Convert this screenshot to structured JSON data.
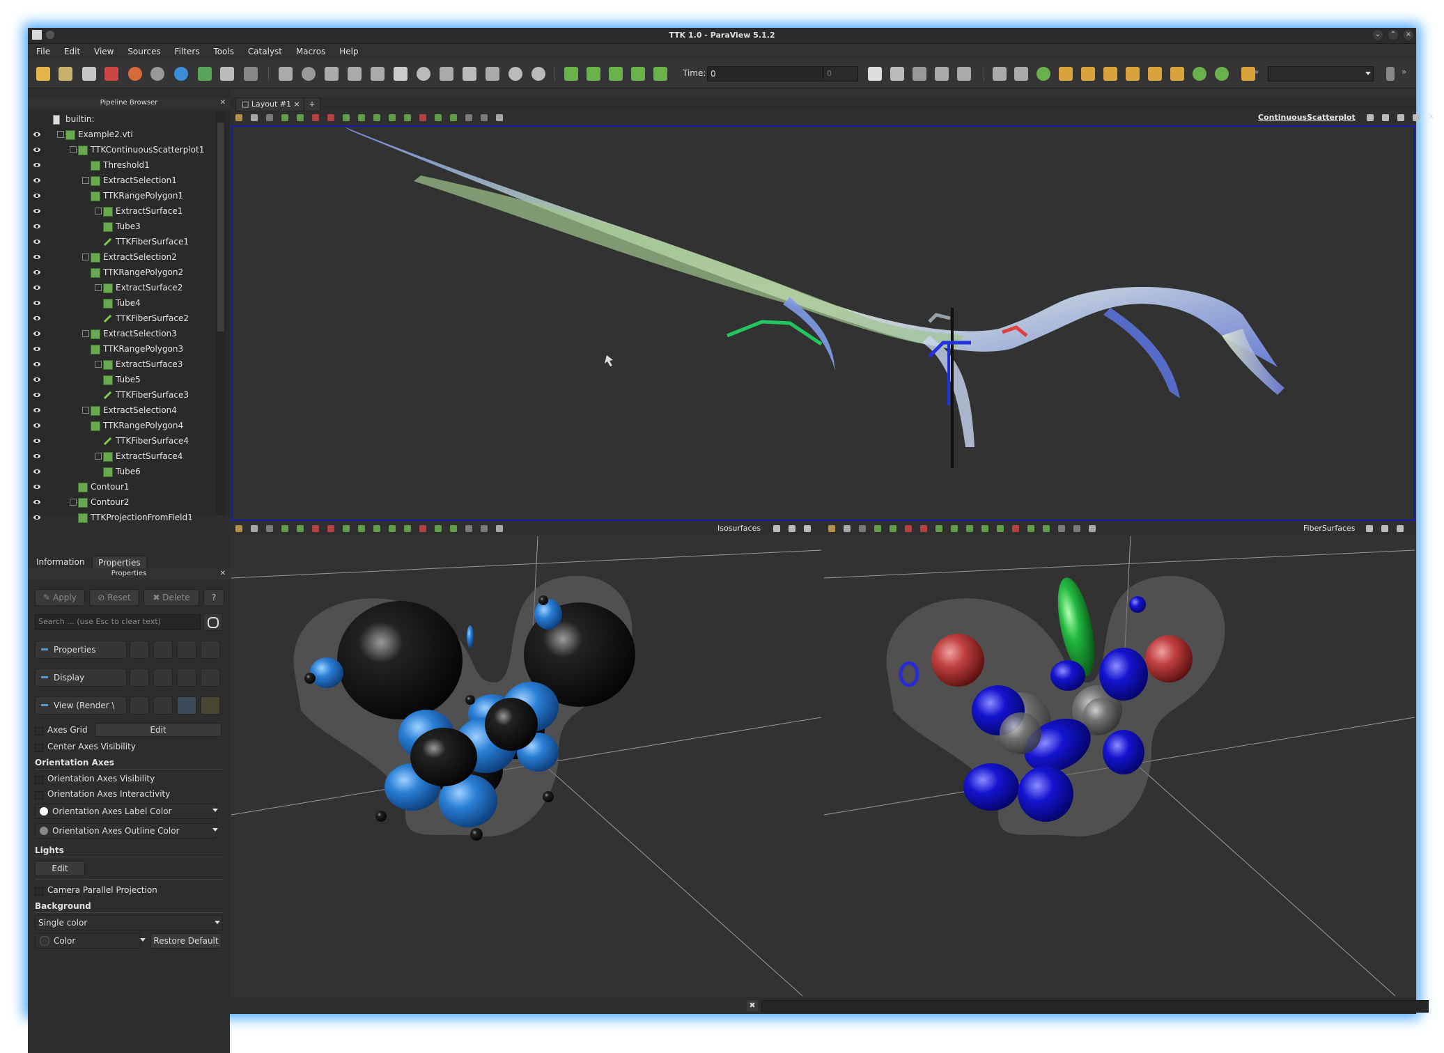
{
  "window": {
    "title": "TTK 1.0 - ParaView 5.1.2"
  },
  "menu": [
    "File",
    "Edit",
    "View",
    "Sources",
    "Filters",
    "Tools",
    "Catalyst",
    "Macros",
    "Help"
  ],
  "time": {
    "label": "Time:",
    "value": "0",
    "spin": "0"
  },
  "pipeline": {
    "title": "Pipeline Browser",
    "items": [
      {
        "label": "builtin:",
        "indent": 0,
        "eye": false,
        "icon": "server",
        "expander": false
      },
      {
        "label": "Example2.vti",
        "indent": 1,
        "eye": true,
        "icon": "cube",
        "expander": true
      },
      {
        "label": "TTKContinuousScatterplot1",
        "indent": 2,
        "eye": true,
        "icon": "cube",
        "expander": true
      },
      {
        "label": "Threshold1",
        "indent": 3,
        "eye": true,
        "icon": "cube",
        "expander": false
      },
      {
        "label": "ExtractSelection1",
        "indent": 3,
        "eye": true,
        "icon": "cube",
        "expander": true
      },
      {
        "label": "TTKRangePolygon1",
        "indent": 3,
        "eye": true,
        "icon": "cube",
        "expander": false
      },
      {
        "label": "ExtractSurface1",
        "indent": 4,
        "eye": true,
        "icon": "cube",
        "expander": true
      },
      {
        "label": "Tube3",
        "indent": 4,
        "eye": true,
        "icon": "cube",
        "expander": false
      },
      {
        "label": "TTKFiberSurface1",
        "indent": 4,
        "eye": true,
        "icon": "pencil",
        "expander": false
      },
      {
        "label": "ExtractSelection2",
        "indent": 3,
        "eye": true,
        "icon": "cube",
        "expander": true
      },
      {
        "label": "TTKRangePolygon2",
        "indent": 3,
        "eye": true,
        "icon": "cube",
        "expander": false
      },
      {
        "label": "ExtractSurface2",
        "indent": 4,
        "eye": true,
        "icon": "cube",
        "expander": true
      },
      {
        "label": "Tube4",
        "indent": 4,
        "eye": true,
        "icon": "cube",
        "expander": false
      },
      {
        "label": "TTKFiberSurface2",
        "indent": 4,
        "eye": true,
        "icon": "pencil",
        "expander": false
      },
      {
        "label": "ExtractSelection3",
        "indent": 3,
        "eye": true,
        "icon": "cube",
        "expander": true
      },
      {
        "label": "TTKRangePolygon3",
        "indent": 3,
        "eye": true,
        "icon": "cube",
        "expander": false
      },
      {
        "label": "ExtractSurface3",
        "indent": 4,
        "eye": true,
        "icon": "cube",
        "expander": true
      },
      {
        "label": "Tube5",
        "indent": 4,
        "eye": true,
        "icon": "cube",
        "expander": false
      },
      {
        "label": "TTKFiberSurface3",
        "indent": 4,
        "eye": true,
        "icon": "pencil",
        "expander": false
      },
      {
        "label": "ExtractSelection4",
        "indent": 3,
        "eye": true,
        "icon": "cube",
        "expander": true
      },
      {
        "label": "TTKRangePolygon4",
        "indent": 3,
        "eye": true,
        "icon": "cube",
        "expander": false
      },
      {
        "label": "TTKFiberSurface4",
        "indent": 4,
        "eye": true,
        "icon": "pencil",
        "expander": false
      },
      {
        "label": "ExtractSurface4",
        "indent": 4,
        "eye": true,
        "icon": "cube",
        "expander": true
      },
      {
        "label": "Tube6",
        "indent": 4,
        "eye": true,
        "icon": "cube",
        "expander": false
      },
      {
        "label": "Contour1",
        "indent": 2,
        "eye": true,
        "icon": "cube",
        "expander": false
      },
      {
        "label": "Contour2",
        "indent": 2,
        "eye": true,
        "icon": "cube",
        "expander": true
      },
      {
        "label": "TTKProjectionFromField1",
        "indent": 2,
        "eye": true,
        "icon": "cube",
        "expander": false
      }
    ]
  },
  "tabs": {
    "information": "Information",
    "properties": "Properties"
  },
  "properties": {
    "title": "Properties",
    "apply": "Apply",
    "reset": "Reset",
    "delete": "Delete",
    "help": "?",
    "search_placeholder": "Search ... (use Esc to clear text)",
    "sections": {
      "properties": "Properties",
      "display": "Display",
      "view": "View (Render \\"
    },
    "axes_grid": "Axes Grid",
    "edit": "Edit",
    "center_axes": "Center Axes Visibility",
    "orientation_axes": "Orientation Axes",
    "oa_visibility": "Orientation Axes Visibility",
    "oa_interactivity": "Orientation Axes Interactivity",
    "oa_label_color": "Orientation Axes Label Color",
    "oa_outline_color": "Orientation Axes Outline Color",
    "lights": "Lights",
    "lights_edit": "Edit",
    "camera_parallel": "Camera Parallel Projection",
    "background": "Background",
    "bg_mode": "Single color",
    "color": "Color",
    "restore_default": "Restore Default"
  },
  "layout": {
    "tab": "Layout #1",
    "add": "+"
  },
  "views": {
    "top": "ContinuousScatterplot",
    "bottom_left": "Isosurfaces",
    "bottom_right": "FiberSurfaces"
  },
  "colors": {
    "accent": "#4aa8ff",
    "active_border": "#1a1aa8",
    "green": "#6aa84f"
  }
}
